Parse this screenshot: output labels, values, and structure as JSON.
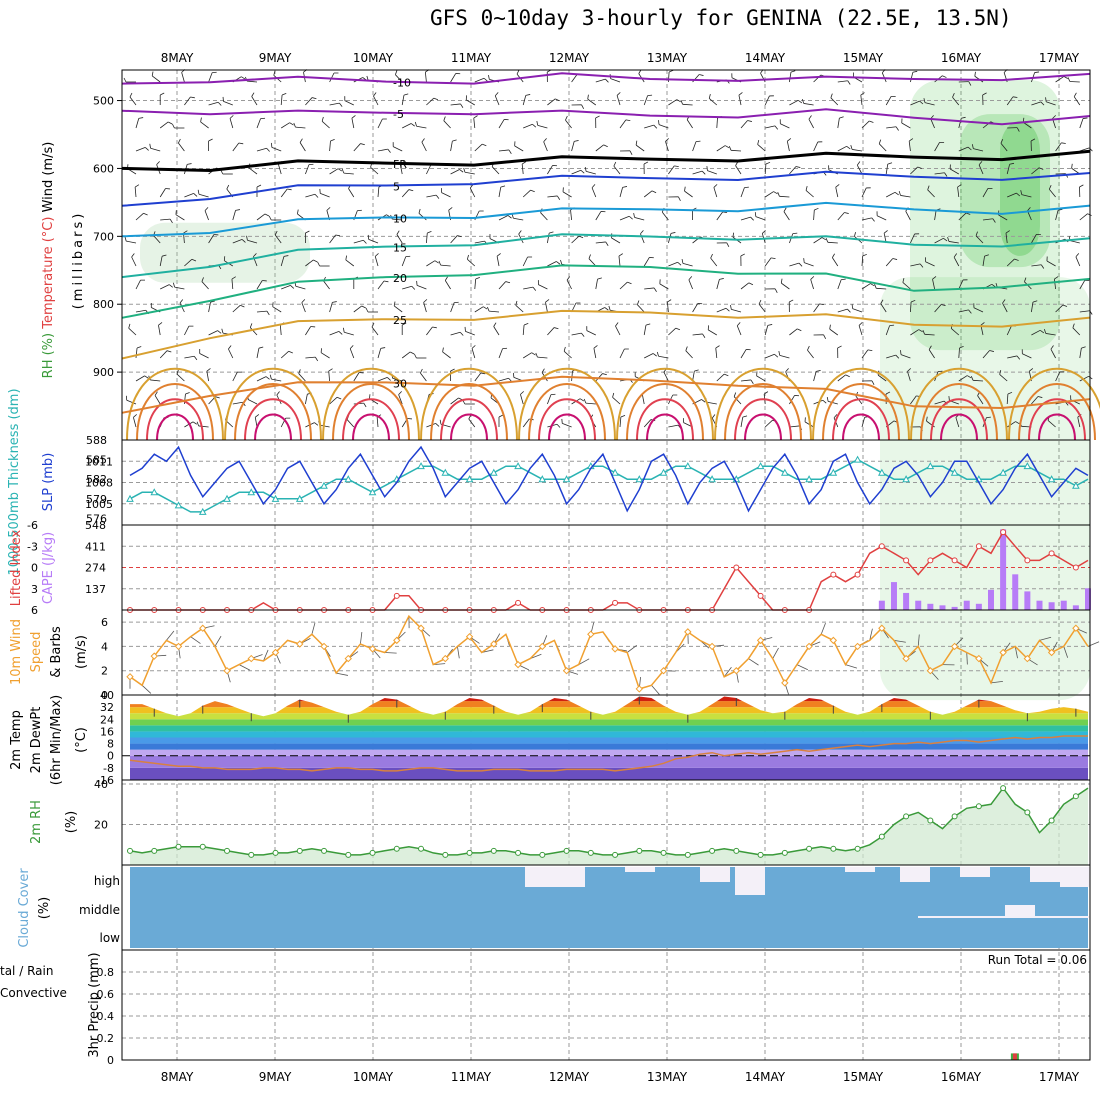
{
  "title": "GFS 0~10day 3-hourly for GENINA (22.5E, 13.5N)",
  "dates": [
    "8MAY",
    "9MAY",
    "10MAY",
    "11MAY",
    "12MAY",
    "13MAY",
    "14MAY",
    "15MAY",
    "16MAY",
    "17MAY"
  ],
  "colors": {
    "frame": "#000000",
    "grid": "#9a9a9a",
    "slp": "#1f3fd0",
    "thick": "#2ab3b3",
    "cape": "#b77cf7",
    "lifted": "#e04040",
    "wind10": "#f0a030",
    "rh2": "#3a9a3a",
    "cloud": "#6aaad6",
    "cloudClear": "#f4f0f8",
    "rain": "#e04040",
    "precipTotal": "#40b040"
  },
  "chart_data": [
    {
      "panel": "upper-air",
      "type": "contour",
      "ylabel_parts": [
        "RH (%)",
        "Temperature (°C)",
        "Wind (m/s)"
      ],
      "ylabel2": "(millibars)",
      "y_ticks": [
        500,
        600,
        700,
        800,
        900
      ],
      "ylim": [
        1000,
        455
      ],
      "contours": [
        {
          "label": "-10",
          "level": -10,
          "color": "#8a1fb0",
          "y_mb": [
            475,
            468,
            470,
            472,
            470,
            465,
            468,
            466,
            470,
            468,
            465,
            466
          ]
        },
        {
          "label": "-5",
          "level": -5,
          "color": "#8a1fb0",
          "y_mb": [
            515,
            515,
            520,
            518,
            515,
            520,
            522,
            520,
            518,
            525,
            530,
            528
          ]
        },
        {
          "label": "FR",
          "level": 0,
          "color": "#000000",
          "y_mb": [
            600,
            598,
            594,
            592,
            590,
            588,
            586,
            584,
            583,
            583,
            582,
            580
          ]
        },
        {
          "label": "5",
          "level": 5,
          "color": "#1f3fd0",
          "y_mb": [
            655,
            640,
            630,
            625,
            618,
            616,
            614,
            612,
            610,
            612,
            612,
            612
          ]
        },
        {
          "label": "10",
          "level": 10,
          "color": "#1a9ad6",
          "y_mb": [
            700,
            690,
            680,
            672,
            668,
            664,
            660,
            658,
            656,
            660,
            662,
            660
          ]
        },
        {
          "label": "15",
          "level": 15,
          "color": "#20b0a0",
          "y_mb": [
            760,
            740,
            725,
            715,
            708,
            702,
            700,
            700,
            705,
            712,
            710,
            708
          ]
        },
        {
          "label": "20",
          "level": 20,
          "color": "#20b080",
          "y_mb": [
            820,
            790,
            772,
            760,
            752,
            748,
            745,
            750,
            760,
            780,
            770,
            768
          ]
        },
        {
          "label": "25",
          "level": 25,
          "color": "#d8a030",
          "y_mb": [
            880,
            845,
            830,
            822,
            818,
            815,
            812,
            815,
            820,
            830,
            828,
            825
          ]
        },
        {
          "label": "30",
          "level": 30,
          "color": "#e08030",
          "y_mb": [
            960,
            930,
            920,
            915,
            915,
            912,
            912,
            915,
            930,
            950,
            948,
            945
          ]
        }
      ]
    },
    {
      "panel": "slp-thickness",
      "type": "line",
      "ylabel_left": "1000-500mb Thickness (dm)",
      "ylabel_right": "SLP (mb)",
      "left_ticks": [
        576,
        579,
        582,
        585,
        588
      ],
      "right_ticks": [
        1005,
        1008,
        1011
      ],
      "series": [
        {
          "name": "SLP (mb)",
          "axis": "right",
          "ylim": [
            1002,
            1014
          ],
          "values": [
            1009,
            1010,
            1012,
            1011,
            1013,
            1009,
            1006,
            1008,
            1010,
            1011,
            1008,
            1005,
            1007,
            1010,
            1011,
            1008,
            1005,
            1007,
            1010,
            1012,
            1009,
            1006,
            1008,
            1011,
            1013,
            1010,
            1006,
            1008,
            1010,
            1011,
            1008,
            1005,
            1007,
            1010,
            1012,
            1009,
            1005,
            1007,
            1010,
            1012,
            1008,
            1004,
            1007,
            1011,
            1012,
            1009,
            1005,
            1008,
            1010,
            1011,
            1008,
            1004,
            1007,
            1010,
            1012,
            1009,
            1005,
            1007,
            1011,
            1012,
            1008,
            1005,
            1007,
            1010,
            1011,
            1009,
            1006,
            1008,
            1011,
            1011,
            1008,
            1005,
            1007,
            1010,
            1012,
            1009,
            1006,
            1008,
            1010,
            1009
          ]
        },
        {
          "name": "1000-500mb Thickness (dm)",
          "axis": "left",
          "ylim": [
            575,
            588
          ],
          "values": [
            579,
            580,
            580,
            579,
            578,
            577,
            577,
            578,
            579,
            580,
            580,
            580,
            579,
            579,
            579,
            580,
            581,
            582,
            582,
            581,
            580,
            581,
            582,
            583,
            584,
            584,
            583,
            582,
            582,
            582,
            583,
            584,
            584,
            583,
            582,
            582,
            582,
            583,
            584,
            584,
            583,
            582,
            582,
            582,
            583,
            584,
            584,
            583,
            582,
            582,
            582,
            583,
            584,
            584,
            583,
            582,
            582,
            582,
            583,
            584,
            585,
            584,
            583,
            582,
            582,
            583,
            584,
            584,
            583,
            582,
            582,
            582,
            583,
            584,
            584,
            583,
            582,
            582,
            581,
            582
          ]
        }
      ]
    },
    {
      "panel": "cape-lifted",
      "type": "bar+line",
      "ylabel_left": "Lifted Index",
      "ylabel_right": "CAPE (J/kg)",
      "left_ticks": [
        "-6",
        "-3",
        "0",
        "3",
        "6"
      ],
      "right_ticks": [
        137,
        274,
        411,
        548
      ],
      "lifted_index": [
        6,
        6,
        6,
        6,
        6,
        6,
        6,
        6,
        6,
        6,
        6,
        5,
        6,
        6,
        6,
        6,
        6,
        6,
        6,
        6,
        6,
        6,
        4,
        4,
        6,
        6,
        6,
        6,
        6,
        6,
        6,
        6,
        5,
        6,
        6,
        6,
        6,
        6,
        6,
        6,
        5,
        5,
        6,
        6,
        6,
        6,
        6,
        6,
        6,
        3,
        0,
        2,
        4,
        6,
        6,
        6,
        6,
        2,
        1,
        2,
        1,
        -2,
        -3,
        -2,
        -1,
        1,
        -1,
        -2,
        -1,
        0,
        -3,
        -2,
        -5,
        -3,
        -1,
        -1,
        -2,
        -1,
        0,
        -1
      ],
      "cape": [
        0,
        0,
        0,
        0,
        0,
        0,
        0,
        0,
        0,
        0,
        0,
        0,
        0,
        0,
        0,
        0,
        0,
        0,
        0,
        0,
        0,
        0,
        0,
        0,
        0,
        0,
        0,
        0,
        0,
        0,
        0,
        0,
        0,
        0,
        0,
        0,
        0,
        0,
        0,
        0,
        0,
        0,
        0,
        0,
        0,
        0,
        0,
        0,
        0,
        0,
        0,
        0,
        0,
        0,
        0,
        0,
        0,
        0,
        0,
        0,
        0,
        0,
        60,
        180,
        110,
        60,
        40,
        30,
        20,
        60,
        40,
        130,
        520,
        230,
        120,
        60,
        50,
        60,
        30,
        140
      ]
    },
    {
      "panel": "wind10m",
      "type": "line",
      "ylabel": "10m Wind Speed & Barbs (m/s)",
      "y_ticks": [
        0,
        2,
        4,
        6
      ],
      "ylim": [
        0,
        7
      ],
      "values": [
        1.5,
        0.8,
        3.2,
        4.5,
        4.0,
        4.8,
        5.5,
        4.0,
        2.0,
        2.5,
        3.0,
        2.8,
        3.5,
        4.5,
        4.2,
        5.0,
        4.0,
        1.8,
        3.0,
        4.2,
        3.8,
        3.5,
        4.5,
        6.5,
        5.5,
        2.5,
        3.0,
        4.0,
        4.8,
        3.5,
        4.2,
        5.0,
        2.5,
        3.0,
        4.0,
        4.5,
        2.0,
        2.5,
        5.0,
        5.2,
        3.8,
        3.5,
        0.5,
        0.8,
        2.0,
        3.5,
        5.2,
        4.5,
        4.0,
        1.5,
        2.0,
        3.0,
        4.5,
        3.0,
        1.0,
        2.5,
        4.0,
        5.0,
        4.5,
        2.5,
        4.0,
        4.5,
        5.5,
        4.5,
        3.0,
        4.0,
        2.0,
        2.5,
        4.0,
        3.5,
        3.0,
        1.0,
        3.5,
        4.0,
        3.0,
        4.5,
        3.5,
        4.0,
        5.5,
        4.0
      ]
    },
    {
      "panel": "temp2m",
      "type": "area+line",
      "ylabel": "2m Temp 2m DewPt (6hr Min/Max) (°C)",
      "y_ticks": [
        "-16",
        "-8",
        "0",
        "8",
        "16",
        "24",
        "32",
        "40"
      ],
      "ylim": [
        -16,
        40
      ],
      "temp": [
        34,
        34,
        31,
        28,
        26,
        28,
        33,
        36,
        34,
        31,
        28,
        26,
        28,
        33,
        37,
        35,
        32,
        29,
        27,
        29,
        34,
        38,
        37,
        33,
        29,
        27,
        29,
        34,
        38,
        37,
        33,
        29,
        27,
        29,
        34,
        38,
        37,
        33,
        29,
        27,
        29,
        34,
        39,
        38,
        33,
        29,
        27,
        29,
        34,
        39,
        38,
        34,
        30,
        28,
        29,
        34,
        38,
        37,
        33,
        29,
        27,
        29,
        34,
        38,
        37,
        33,
        29,
        27,
        29,
        33,
        37,
        36,
        33,
        30,
        28,
        29,
        31,
        32,
        31,
        29
      ],
      "dewpt": [
        -3,
        -4,
        -5,
        -6,
        -7,
        -7,
        -8,
        -8,
        -9,
        -9,
        -9,
        -8,
        -8,
        -9,
        -9,
        -10,
        -9,
        -8,
        -8,
        -9,
        -9,
        -10,
        -10,
        -9,
        -8,
        -8,
        -9,
        -10,
        -10,
        -10,
        -9,
        -9,
        -9,
        -10,
        -10,
        -10,
        -9,
        -9,
        -9,
        -9,
        -10,
        -9,
        -8,
        -7,
        -5,
        -2,
        -1,
        1,
        2,
        0,
        1,
        2,
        1,
        2,
        3,
        4,
        3,
        4,
        5,
        6,
        7,
        6,
        7,
        8,
        8,
        9,
        8,
        9,
        10,
        10,
        9,
        10,
        11,
        12,
        11,
        12,
        12,
        13,
        13,
        13
      ]
    },
    {
      "panel": "rh2m",
      "type": "area+line",
      "ylabel": "2m RH (%)",
      "y_ticks": [
        20,
        40
      ],
      "ylim": [
        0,
        42
      ],
      "values": [
        7,
        6,
        7,
        8,
        9,
        9,
        9,
        8,
        7,
        6,
        5,
        5,
        6,
        6,
        7,
        8,
        7,
        6,
        5,
        5,
        6,
        7,
        8,
        9,
        8,
        6,
        5,
        5,
        6,
        6,
        7,
        7,
        6,
        5,
        5,
        6,
        7,
        7,
        6,
        5,
        5,
        6,
        7,
        7,
        6,
        5,
        5,
        6,
        7,
        8,
        7,
        6,
        5,
        5,
        6,
        7,
        8,
        9,
        8,
        7,
        8,
        10,
        14,
        20,
        24,
        26,
        22,
        18,
        24,
        28,
        29,
        30,
        38,
        30,
        26,
        16,
        22,
        30,
        34,
        38
      ]
    },
    {
      "panel": "cloud",
      "type": "heatmap",
      "ylabel": "Cloud Cover (%)",
      "levels": [
        "high",
        "middle",
        "low"
      ],
      "high": [
        10,
        0,
        0,
        0,
        0,
        0,
        0,
        0,
        0,
        0,
        0,
        0,
        10,
        10,
        0,
        10,
        10,
        0,
        0,
        0,
        0,
        0,
        0,
        0,
        0,
        0,
        0,
        0,
        0,
        0,
        0,
        0,
        0,
        0,
        0,
        0,
        0,
        0,
        0,
        0,
        0,
        0,
        0,
        0,
        0,
        0,
        0,
        0,
        0,
        0,
        0,
        0,
        0,
        0,
        0,
        0,
        0,
        0,
        0,
        0,
        0,
        0,
        0,
        0,
        0,
        0,
        0,
        0,
        0,
        0,
        0,
        0,
        0,
        0,
        0,
        0,
        0,
        0,
        0,
        0
      ],
      "high_clear_blocks": "patchy from 11MAY onward",
      "middle_clear_from_day": 15.5
    },
    {
      "panel": "precip",
      "type": "bar",
      "ylabel": "3hr Precip (mm)",
      "legend_left": [
        "tal / Rain",
        "Convective"
      ],
      "annotation": "Run Total = 0.06",
      "y_ticks": [
        "0",
        "0.2",
        "0.4",
        "0.6",
        "0.8"
      ],
      "ylim": [
        0,
        1.0
      ],
      "bars": [
        {
          "day_index": 8.55,
          "total": 0.06,
          "convective": 0.06
        }
      ]
    }
  ]
}
